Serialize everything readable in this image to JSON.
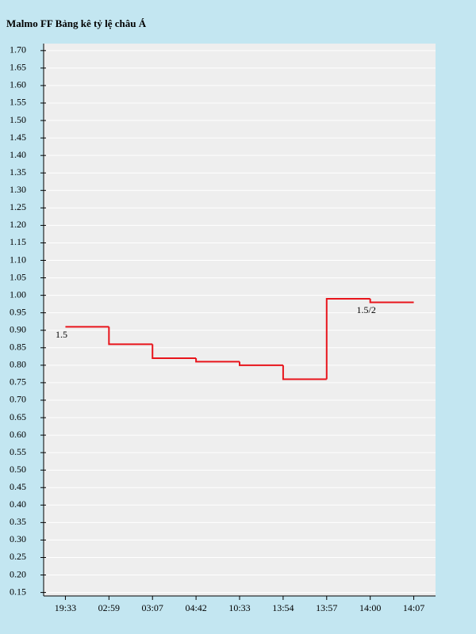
{
  "chart_data": {
    "type": "step",
    "title": "Malmo FF Bảng kê tỷ lệ châu Á",
    "categories": [
      "19:33",
      "02:59",
      "03:07",
      "04:42",
      "10:33",
      "13:54",
      "13:57",
      "14:00",
      "14:07"
    ],
    "series": [
      {
        "name": "Malmo FF",
        "color": "#e8141b",
        "values": [
          0.91,
          0.86,
          0.82,
          0.81,
          0.8,
          0.76,
          0.99,
          0.98,
          0.98
        ]
      }
    ],
    "point_labels": [
      "1.5",
      null,
      null,
      null,
      null,
      null,
      null,
      "1.5/2",
      null
    ],
    "ylim": [
      0.14,
      1.72
    ],
    "yticks": [
      0.15,
      {
        "value": 0.2,
        "label": "0.20"
      },
      0.25,
      {
        "value": 0.3,
        "label": "0.30"
      },
      0.35,
      {
        "value": 0.4,
        "label": "0.40"
      },
      0.45,
      {
        "value": 0.5,
        "label": "0.50"
      },
      0.55,
      {
        "value": 0.6,
        "label": "0.60"
      },
      0.65,
      {
        "value": 0.7,
        "label": "0.70"
      },
      0.75,
      {
        "value": 0.8,
        "label": "0.80"
      },
      0.85,
      {
        "value": 0.9,
        "label": "0.90"
      },
      0.95,
      {
        "value": 1,
        "label": "1.00"
      },
      1.05,
      {
        "value": 1.1,
        "label": "1.10"
      },
      1.15,
      {
        "value": 1.2,
        "label": "1.20"
      },
      1.25,
      {
        "value": 1.3,
        "label": "1.30"
      },
      1.35,
      {
        "value": 1.4,
        "label": "1.40"
      },
      1.45,
      {
        "value": 1.5,
        "label": "1.50"
      },
      1.55,
      {
        "value": 1.6,
        "label": "1.60"
      },
      1.65,
      {
        "value": 1.7,
        "label": "1.70"
      }
    ],
    "grid": true
  }
}
